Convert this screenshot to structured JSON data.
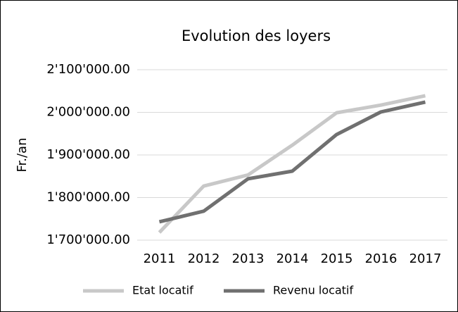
{
  "chart_data": {
    "type": "line",
    "title": "Evolution des loyers",
    "y_label": "Fr./an",
    "categories": [
      "2011",
      "2012",
      "2013",
      "2014",
      "2015",
      "2016",
      "2017"
    ],
    "series": [
      {
        "name": "Etat locatif",
        "color": "#c8c8c8",
        "values": [
          1718000,
          1827000,
          1853000,
          1923000,
          1999000,
          2017000,
          2039000
        ]
      },
      {
        "name": "Revenu locatif",
        "color": "#707070",
        "values": [
          1743000,
          1768000,
          1844000,
          1862000,
          1948000,
          2001000,
          2024000
        ]
      }
    ],
    "ylim": [
      1700000,
      2100000
    ],
    "yticks": [
      {
        "value": 1700000,
        "label": "1'700'000.00"
      },
      {
        "value": 1800000,
        "label": "1'800'000.00"
      },
      {
        "value": 1900000,
        "label": "1'900'000.00"
      },
      {
        "value": 2000000,
        "label": "2'000'000.00"
      },
      {
        "value": 2100000,
        "label": "2'100'000.00"
      }
    ],
    "grid": true,
    "legend": "bottom"
  }
}
